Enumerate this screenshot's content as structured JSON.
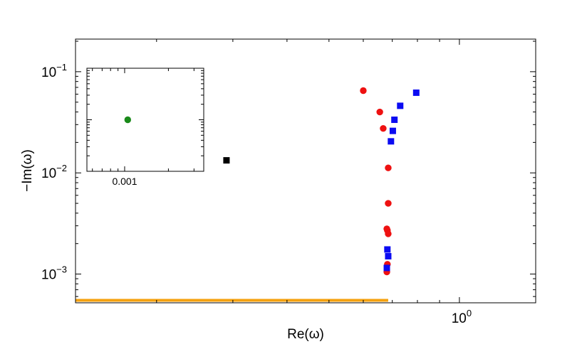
{
  "chart_data": [
    {
      "type": "scatter",
      "xlabel": "Re(ω)",
      "ylabel": "−Im(ω)",
      "x_scale": "log",
      "y_scale": "log",
      "xlim": [
        0.13,
        1.5
      ],
      "ylim": [
        0.00052,
        0.21
      ],
      "grid": false,
      "x_ticks": [
        {
          "value": 1.0,
          "base": "10",
          "exp": "0"
        }
      ],
      "x_minor_ticks": [
        0.2,
        0.3,
        0.4,
        0.5,
        0.6,
        0.7,
        0.8,
        0.9
      ],
      "y_ticks": [
        {
          "value": 0.001,
          "base": "10",
          "exp": "−3"
        },
        {
          "value": 0.01,
          "base": "10",
          "exp": "−2"
        },
        {
          "value": 0.1,
          "base": "10",
          "exp": "−1"
        }
      ],
      "colors": {
        "red": "#ee1111",
        "blue": "#0b0bf2",
        "black": "#000000",
        "orange": "#f5a20f",
        "green": "#1a8a1a"
      },
      "series": [
        {
          "marker": "circle",
          "color": "#ee1111",
          "points": [
            [
              0.6,
              0.065
            ],
            [
              0.655,
              0.04
            ],
            [
              0.667,
              0.0275
            ],
            [
              0.685,
              0.0112
            ],
            [
              0.685,
              0.005
            ],
            [
              0.68,
              0.0028
            ],
            [
              0.682,
              0.0027
            ],
            [
              0.685,
              0.0025
            ],
            [
              0.682,
              0.00125
            ],
            [
              0.68,
              0.00105
            ]
          ]
        },
        {
          "marker": "square",
          "color": "#0b0bf2",
          "points": [
            [
              0.795,
              0.062
            ],
            [
              0.73,
              0.046
            ],
            [
              0.708,
              0.0335
            ],
            [
              0.702,
              0.026
            ],
            [
              0.695,
              0.0205
            ],
            [
              0.682,
              0.00175
            ],
            [
              0.685,
              0.0015
            ],
            [
              0.68,
              0.00115
            ]
          ]
        },
        {
          "marker": "square",
          "color": "#000000",
          "points": [
            [
              0.29,
              0.0133
            ]
          ]
        },
        {
          "marker": "hline",
          "color": "#f5a20f",
          "x_range": [
            0.13,
            0.685
          ],
          "y": 0.00055
        }
      ]
    },
    {
      "type": "scatter",
      "x_scale": "log",
      "y_scale": "log",
      "xlim": [
        0.00055,
        0.0035
      ],
      "ylim": [
        0.1,
        10
      ],
      "x_ticks": [
        {
          "value": 0.001,
          "label": "0.001"
        }
      ],
      "series": [
        {
          "marker": "circle",
          "color": "#1a8a1a",
          "points": [
            [
              0.00105,
              1.0
            ]
          ]
        }
      ]
    }
  ]
}
